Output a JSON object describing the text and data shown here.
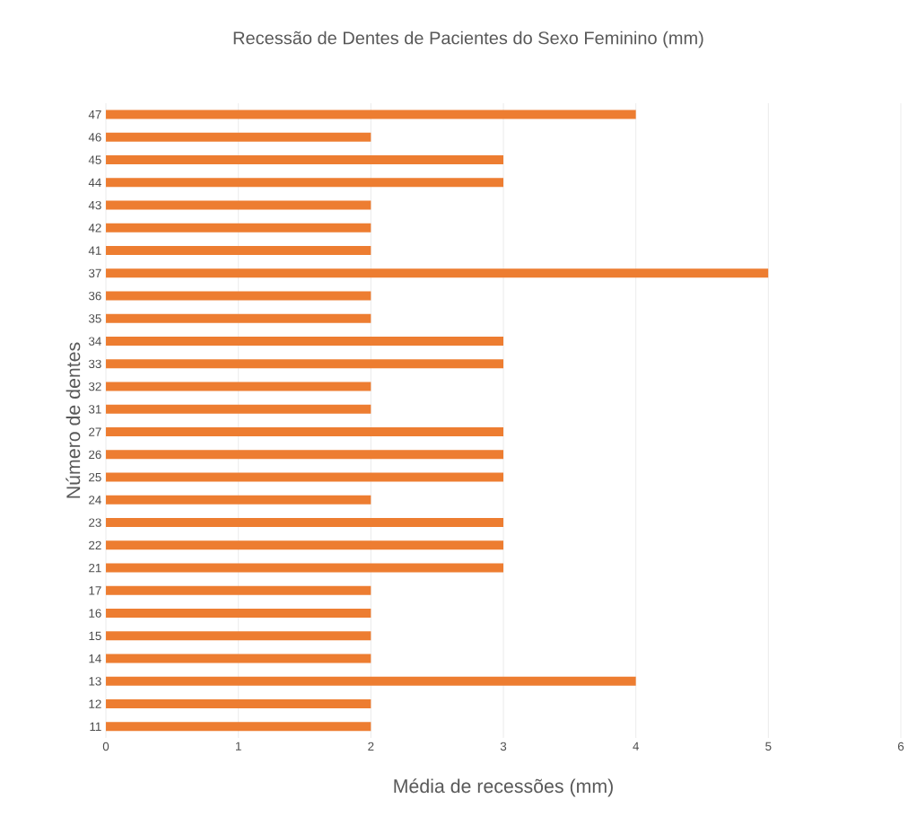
{
  "chart_data": {
    "type": "bar",
    "orientation": "horizontal",
    "title": "Recessão de Dentes de Pacientes do Sexo Feminino (mm)",
    "xlabel": "Média de recessões (mm)",
    "ylabel": "Número de dentes",
    "categories": [
      "47",
      "46",
      "45",
      "44",
      "43",
      "42",
      "41",
      "37",
      "36",
      "35",
      "34",
      "33",
      "32",
      "31",
      "27",
      "26",
      "25",
      "24",
      "23",
      "22",
      "21",
      "17",
      "16",
      "15",
      "14",
      "13",
      "12",
      "11"
    ],
    "values": [
      4,
      2,
      3,
      3,
      2,
      2,
      2,
      5,
      2,
      2,
      3,
      3,
      2,
      2,
      3,
      3,
      3,
      2,
      3,
      3,
      3,
      2,
      2,
      2,
      2,
      4,
      2,
      2
    ],
    "color": "#ed7d31",
    "xlim": [
      0,
      6
    ],
    "xticks": [
      0,
      1,
      2,
      3,
      4,
      5,
      6
    ],
    "grid": "x"
  }
}
